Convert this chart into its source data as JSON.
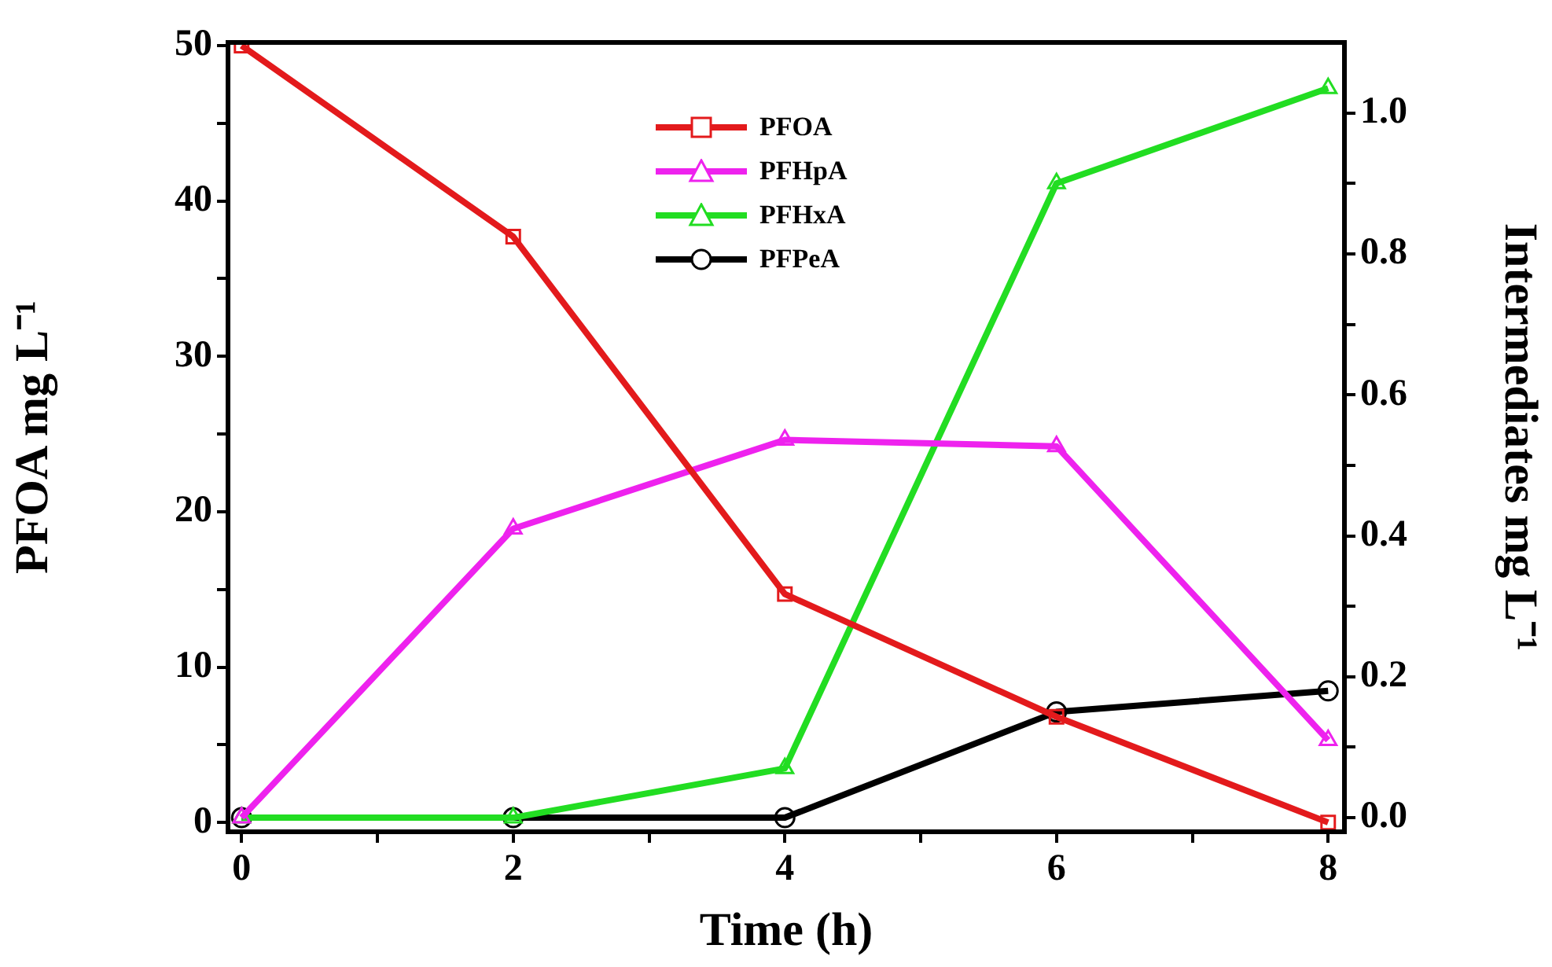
{
  "chart_data": {
    "type": "line",
    "xlabel": "Time (h)",
    "ylabel": "PFOA mg L⁻¹",
    "y2label": "Intermediates mg L⁻¹",
    "x": [
      0,
      2,
      4,
      6,
      8
    ],
    "series": [
      {
        "name": "PFOA",
        "color": "#e31a1c",
        "marker": "square",
        "values": [
          50,
          37.7,
          14.7,
          6.8,
          0
        ]
      },
      {
        "name": "PFHpA",
        "color": "#ee22ee",
        "marker": "triangle",
        "axis": "y2",
        "values": [
          0,
          0.41,
          0.536,
          0.527,
          0.11
        ]
      },
      {
        "name": "PFHxA",
        "color": "#22dd22",
        "marker": "triangle",
        "axis": "y2",
        "values": [
          0,
          0,
          0.07,
          0.9,
          1.035
        ]
      },
      {
        "name": "PFPeA",
        "color": "#000000",
        "marker": "circle",
        "axis": "y2",
        "values": [
          0,
          0,
          0,
          0.15,
          0.18
        ]
      }
    ],
    "xlim": [
      -0.1,
      8.12
    ],
    "xticks": [
      0,
      {
        "value": 1,
        "label": null
      },
      2,
      {
        "value": 3,
        "label": null
      },
      4,
      {
        "value": 5,
        "label": null
      },
      6,
      {
        "value": 7,
        "label": null
      },
      8
    ],
    "ylim": [
      -0.6,
      50.2
    ],
    "yticks": [
      0,
      {
        "value": 5,
        "label": null
      },
      10,
      {
        "value": 15,
        "label": null
      },
      20,
      {
        "value": 25,
        "label": null
      },
      30,
      {
        "value": 35,
        "label": null
      },
      40,
      {
        "value": 45,
        "label": null
      },
      50
    ],
    "y2lim": [
      -0.02,
      1.1
    ],
    "y2ticks": [
      {
        "value": 0,
        "label": "0.0"
      },
      {
        "value": 0.1,
        "label": null
      },
      {
        "value": 0.2,
        "label": "0.2"
      },
      {
        "value": 0.3,
        "label": null
      },
      {
        "value": 0.4,
        "label": "0.4"
      },
      {
        "value": 0.5,
        "label": null
      },
      {
        "value": 0.6,
        "label": "0.6"
      },
      {
        "value": 0.7,
        "label": null
      },
      {
        "value": 0.8,
        "label": "0.8"
      },
      {
        "value": 0.9,
        "label": null
      },
      {
        "value": 1,
        "label": "1.0"
      }
    ],
    "grid": false,
    "legend": "top",
    "line_style": "solid"
  }
}
